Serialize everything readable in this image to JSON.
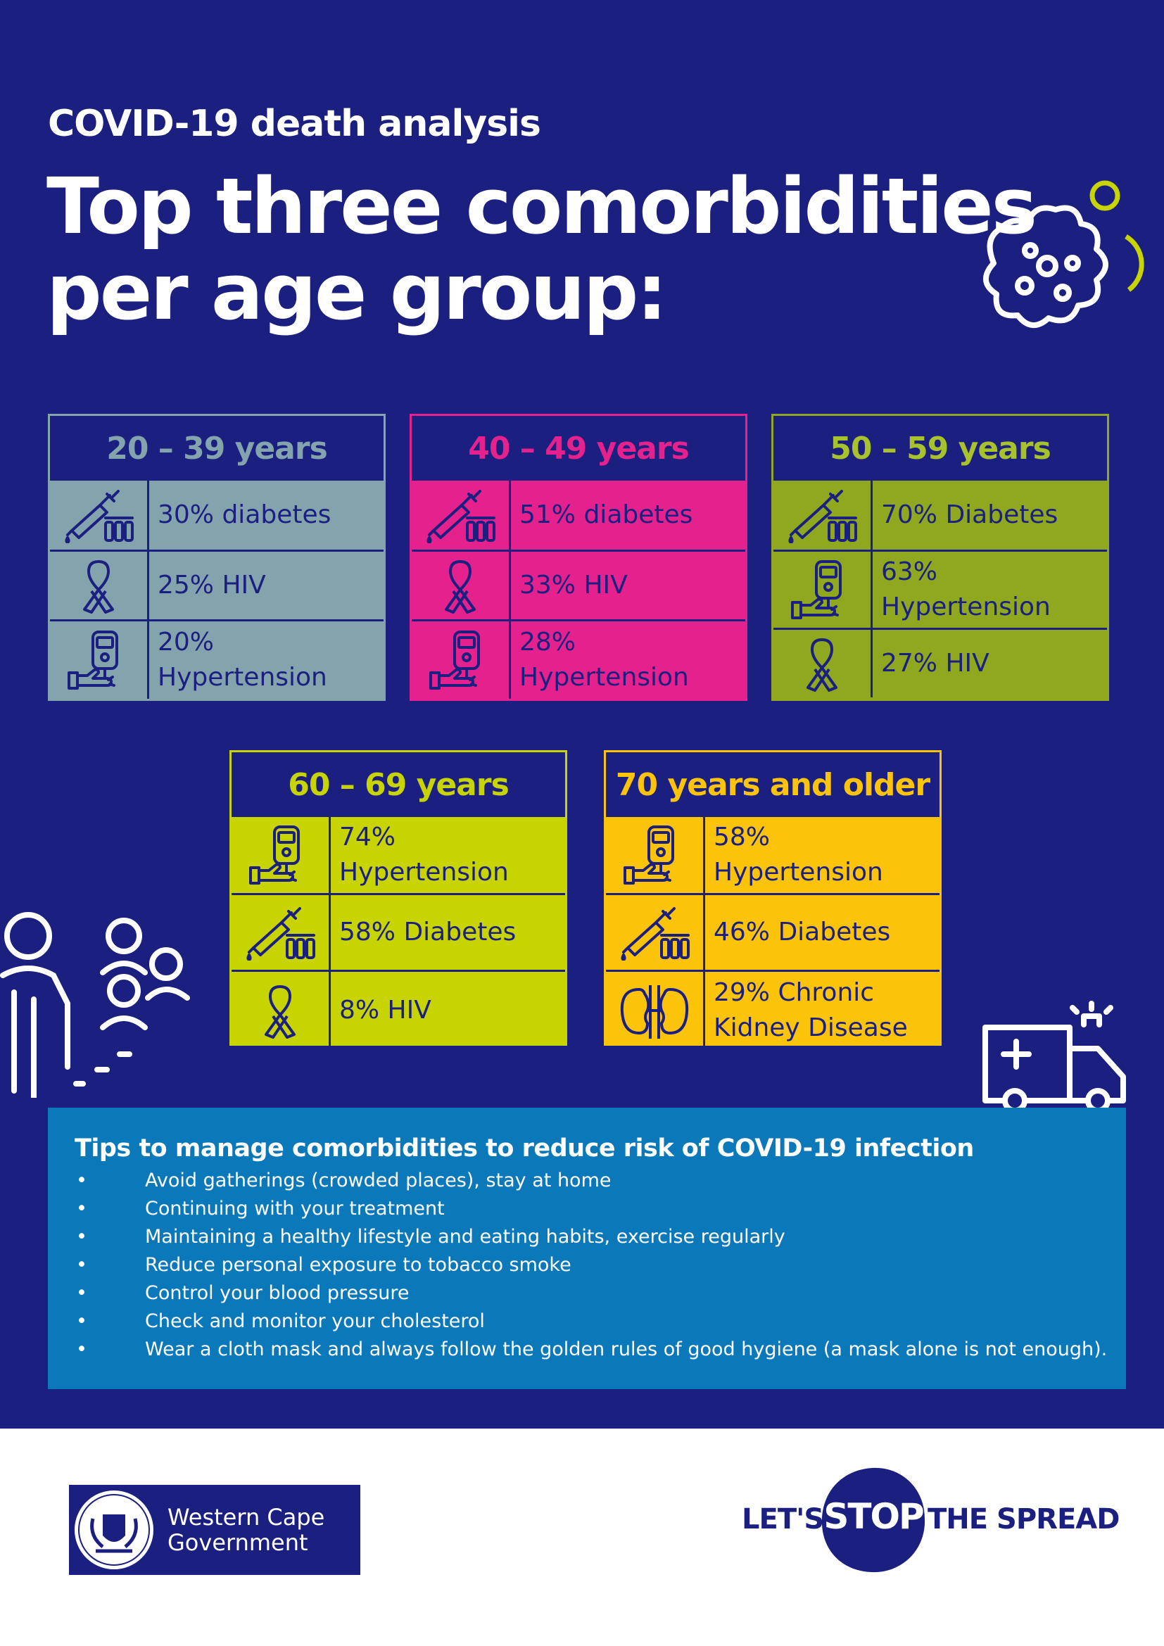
{
  "header": {
    "subtitle": "COVID-19 death analysis",
    "title_line1": "Top three comorbidities",
    "title_line2": "per age group:"
  },
  "cards": [
    {
      "label": "20 – 39 years",
      "color": "#85a3ad",
      "head_text": "#85a3ad",
      "rows": [
        {
          "icon": "syringe-vials-icon",
          "text": "30% diabetes"
        },
        {
          "icon": "ribbon-icon",
          "text": "25% HIV"
        },
        {
          "icon": "glucose-meter-icon",
          "text": "20% Hypertension"
        }
      ]
    },
    {
      "label": "40 – 49 years",
      "color": "#e5218d",
      "head_text": "#e5218d",
      "rows": [
        {
          "icon": "syringe-vials-icon",
          "text": "51% diabetes"
        },
        {
          "icon": "ribbon-icon",
          "text": "33% HIV"
        },
        {
          "icon": "glucose-meter-icon",
          "text": "28% Hypertension"
        }
      ]
    },
    {
      "label": "50 – 59 years",
      "color": "#8fa81f",
      "head_text": "#a7c22a",
      "rows": [
        {
          "icon": "syringe-vials-icon",
          "text": "70% Diabetes"
        },
        {
          "icon": "glucose-meter-icon",
          "text": "63% Hypertension"
        },
        {
          "icon": "ribbon-icon",
          "text": "27% HIV"
        }
      ]
    },
    {
      "label": "60 – 69 years",
      "color": "#c8d400",
      "head_text": "#c8d400",
      "rows": [
        {
          "icon": "glucose-meter-icon",
          "text": "74% Hypertension"
        },
        {
          "icon": "syringe-vials-icon",
          "text": "58% Diabetes"
        },
        {
          "icon": "ribbon-icon",
          "text": "8% HIV"
        }
      ]
    },
    {
      "label": "70 years and older",
      "color": "#fcc30b",
      "head_text": "#fcc30b",
      "rows": [
        {
          "icon": "glucose-meter-icon",
          "text": "58% Hypertension"
        },
        {
          "icon": "syringe-vials-icon",
          "text": "46% Diabetes"
        },
        {
          "icon": "kidney-icon",
          "text": "29% Chronic Kidney Disease"
        }
      ]
    }
  ],
  "tips": {
    "title": "Tips to manage comorbidities to reduce risk of COVID-19 infection",
    "bullet": "•",
    "items": [
      "Avoid gatherings (crowded places), stay at home",
      "Continuing with your treatment",
      "Maintaining a healthy lifestyle and eating habits, exercise regularly",
      "Reduce personal exposure to tobacco smoke",
      "Control your blood pressure",
      "Check and monitor your cholesterol",
      "Wear a cloth mask and always follow the golden rules of good hygiene (a mask alone is not enough)."
    ]
  },
  "footer": {
    "gov_line1": "Western Cape",
    "gov_line2": "Government",
    "lets": "LET'S",
    "stop": "STOP",
    "spread": "THE SPREAD"
  },
  "colors": {
    "navy": "#1a1f80",
    "tips_blue": "#0a78b9",
    "virus_accent": "#c8d400"
  }
}
